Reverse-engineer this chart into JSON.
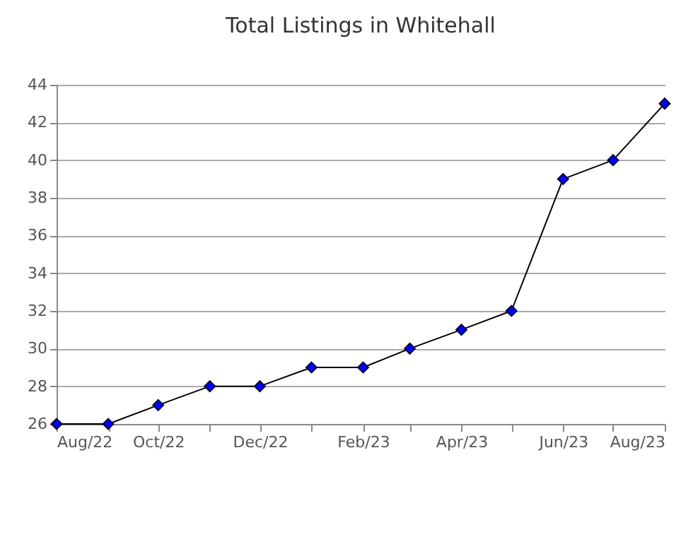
{
  "chart_data": {
    "type": "line",
    "title": "Total Listings in Whitehall",
    "x": [
      "2022-08",
      "2022-09",
      "2022-10",
      "2022-11",
      "2022-12",
      "2023-01",
      "2023-02",
      "2023-03",
      "2023-04",
      "2023-05",
      "2023-06",
      "2023-07",
      "2023-08"
    ],
    "series": [
      {
        "color": "#0000ff",
        "values": [
          26,
          26,
          27,
          28,
          28,
          29,
          29,
          30,
          31,
          32,
          39,
          40,
          43
        ]
      }
    ],
    "marker": "diamond",
    "line_style": "solid",
    "ylim": [
      26,
      44
    ],
    "yticks": [
      26,
      28,
      30,
      32,
      34,
      36,
      38,
      40,
      42,
      44
    ],
    "xlim": [
      "2022-08",
      "2023-08"
    ],
    "xticks": [
      {
        "value": "2022-08",
        "label": "Aug/22"
      },
      {
        "value": "2022-09",
        "label": null
      },
      {
        "value": "2022-10",
        "label": "Oct/22"
      },
      {
        "value": "2022-11",
        "label": null
      },
      {
        "value": "2022-12",
        "label": "Dec/22"
      },
      {
        "value": "2023-01",
        "label": null
      },
      {
        "value": "2023-02",
        "label": "Feb/23"
      },
      {
        "value": "2023-03",
        "label": null
      },
      {
        "value": "2023-04",
        "label": "Apr/23"
      },
      {
        "value": "2023-05",
        "label": null
      },
      {
        "value": "2023-06",
        "label": "Jun/23"
      },
      {
        "value": "2023-07",
        "label": null
      },
      {
        "value": "2023-08",
        "label": "Aug/23"
      }
    ],
    "grid": "y"
  }
}
